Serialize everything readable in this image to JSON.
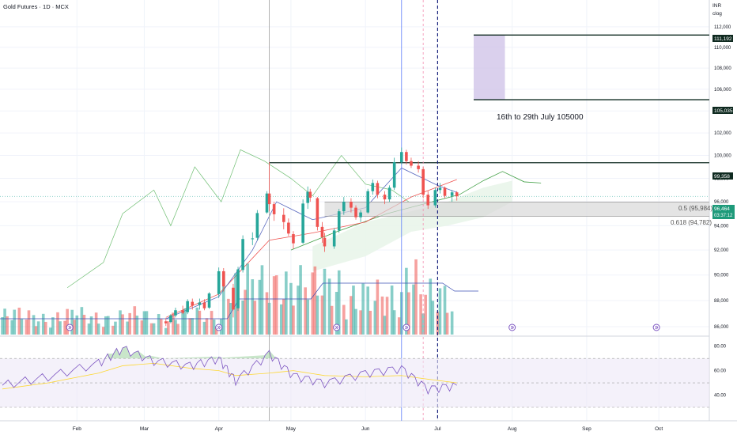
{
  "header": {
    "title": "Gold Futures · 1D · MCX"
  },
  "axis_labels": {
    "currency": "INR",
    "mode": "clog"
  },
  "price_tags": {
    "target_high": "111,192",
    "target_low": "105,035",
    "resistance": "99,358",
    "last_price": "96,464",
    "countdown": "03:37:12"
  },
  "annotations": {
    "target_box": "16th to 29th July 105000"
  },
  "fib_levels": [
    {
      "label": "0.5 (95,984)"
    },
    {
      "label": "0.618 (94,782)"
    }
  ],
  "colors": {
    "up": "#26a69a",
    "down": "#ef5350",
    "rsi": "#7e57c2",
    "target_box": "#d1c4e9",
    "fib_band": "#d9d9d9"
  },
  "chart_data": [
    {
      "type": "candlestick",
      "title": "Gold Futures · 1D · MCX",
      "ylabel": "INR",
      "y_scale": "log",
      "ylim": [
        85400,
        114200
      ],
      "y_ticks": [
        86000,
        88000,
        90000,
        92000,
        94000,
        96000,
        98000,
        100000,
        102000,
        104000,
        106000,
        108000,
        110000,
        112000
      ],
      "y_tick_labels": [
        "86,000",
        "88,000",
        "90,000",
        "92,000",
        "94,000",
        "96,000",
        "98,000",
        "100,000",
        "102,000",
        "104,000",
        "106,000",
        "108,000",
        "110,000",
        "112,000"
      ],
      "x_ticks": [
        {
          "date": "2025-02-01",
          "label": "Feb"
        },
        {
          "date": "2025-03-01",
          "label": "Mar"
        },
        {
          "date": "2025-04-01",
          "label": "Apr"
        },
        {
          "date": "2025-05-01",
          "label": "May"
        },
        {
          "date": "2025-06-01",
          "label": "Jun"
        },
        {
          "date": "2025-07-01",
          "label": "Jul"
        },
        {
          "date": "2025-08-01",
          "label": "Aug"
        },
        {
          "date": "2025-09-01",
          "label": "Sep"
        },
        {
          "date": "2025-10-01",
          "label": "Oct"
        }
      ],
      "xlim": [
        "2024-12-31",
        "2025-10-22"
      ],
      "candles": [
        [
          "2025-03-10",
          86400,
          86650,
          86050,
          86250
        ],
        [
          "2025-03-12",
          86350,
          86950,
          86250,
          86850
        ],
        [
          "2025-03-14",
          86850,
          87450,
          86700,
          87250
        ],
        [
          "2025-03-17",
          87250,
          87600,
          86950,
          87050
        ],
        [
          "2025-03-19",
          87100,
          88100,
          86950,
          87950
        ],
        [
          "2025-03-21",
          87900,
          88150,
          87300,
          87600
        ],
        [
          "2025-03-24",
          87650,
          88150,
          87300,
          87850
        ],
        [
          "2025-03-26",
          87850,
          88100,
          87250,
          87400
        ],
        [
          "2025-03-28",
          87450,
          88650,
          87350,
          88550
        ],
        [
          "2025-04-01",
          88500,
          90600,
          88200,
          90300
        ],
        [
          "2025-04-03",
          90300,
          90550,
          88700,
          89100
        ],
        [
          "2025-04-07",
          89000,
          89300,
          86700,
          87300
        ],
        [
          "2025-04-09",
          87400,
          90650,
          87200,
          90450
        ],
        [
          "2025-04-11",
          90400,
          93200,
          90200,
          92900
        ],
        [
          "2025-04-15",
          92900,
          93450,
          92400,
          92950
        ],
        [
          "2025-04-17",
          93000,
          95300,
          92800,
          95050
        ],
        [
          "2025-04-21",
          95100,
          96900,
          95000,
          96700
        ],
        [
          "2025-04-22",
          96700,
          99400,
          95200,
          95800
        ],
        [
          "2025-04-24",
          95800,
          96000,
          94400,
          94950
        ],
        [
          "2025-04-28",
          94900,
          95450,
          93700,
          94300
        ],
        [
          "2025-04-30",
          94250,
          94600,
          93150,
          93350
        ],
        [
          "2025-05-02",
          93300,
          93550,
          92100,
          92550
        ],
        [
          "2025-05-06",
          92600,
          96200,
          92500,
          95850
        ],
        [
          "2025-05-08",
          95900,
          97300,
          95400,
          96850
        ],
        [
          "2025-05-09",
          96850,
          97100,
          96000,
          96350
        ],
        [
          "2025-05-12",
          96300,
          96400,
          93600,
          93900
        ],
        [
          "2025-05-14",
          93900,
          94300,
          92600,
          93050
        ],
        [
          "2025-05-15",
          93000,
          93400,
          91850,
          92300
        ],
        [
          "2025-05-19",
          92300,
          93800,
          92100,
          93600
        ],
        [
          "2025-05-21",
          93600,
          95400,
          93400,
          95200
        ],
        [
          "2025-05-23",
          95200,
          96400,
          94900,
          96000
        ],
        [
          "2025-05-26",
          96000,
          96300,
          95100,
          95500
        ],
        [
          "2025-05-28",
          95500,
          95700,
          94500,
          94700
        ],
        [
          "2025-05-30",
          94700,
          95300,
          94300,
          95100
        ],
        [
          "2025-06-02",
          95100,
          97100,
          95000,
          96900
        ],
        [
          "2025-06-04",
          96900,
          97900,
          96600,
          97600
        ],
        [
          "2025-06-06",
          97600,
          97800,
          96300,
          96600
        ],
        [
          "2025-06-09",
          96600,
          96900,
          95800,
          96200
        ],
        [
          "2025-06-11",
          96200,
          97400,
          96000,
          97200
        ],
        [
          "2025-06-13",
          97200,
          99800,
          97000,
          99400
        ],
        [
          "2025-06-16",
          99400,
          100700,
          99200,
          100300
        ],
        [
          "2025-06-18",
          100300,
          100500,
          99200,
          99500
        ],
        [
          "2025-06-20",
          99500,
          99800,
          98900,
          99100
        ],
        [
          "2025-06-23",
          99100,
          99500,
          98500,
          98800
        ],
        [
          "2025-06-25",
          98800,
          99000,
          96300,
          96600
        ],
        [
          "2025-06-27",
          96600,
          96900,
          95400,
          95700
        ],
        [
          "2025-06-30",
          95700,
          97200,
          95500,
          97000
        ],
        [
          "2025-07-02",
          97000,
          97600,
          96700,
          97200
        ],
        [
          "2025-07-04",
          97200,
          97300,
          96300,
          96500
        ],
        [
          "2025-07-07",
          96500,
          97000,
          96000,
          96800
        ],
        [
          "2025-07-09",
          96800,
          96900,
          96100,
          96464
        ]
      ]
    },
    {
      "type": "line",
      "title": "RSI",
      "ylim": [
        30,
        85
      ],
      "y_ticks": [
        40,
        60,
        80
      ],
      "y_tick_labels": [
        "40.00",
        "60.00",
        "80.00"
      ],
      "bands": [
        30,
        50,
        70
      ],
      "x": [
        "2025-01-01",
        "2025-01-20",
        "2025-02-10",
        "2025-02-20",
        "2025-03-05",
        "2025-03-20",
        "2025-04-01",
        "2025-04-08",
        "2025-04-22",
        "2025-05-02",
        "2025-05-15",
        "2025-06-01",
        "2025-06-16",
        "2025-06-27",
        "2025-07-09"
      ],
      "series": [
        {
          "values": [
            48,
            55,
            66,
            78,
            68,
            64,
            70,
            52,
            74,
            56,
            50,
            58,
            62,
            45,
            48
          ]
        },
        {
          "values": [
            45,
            50,
            58,
            64,
            66,
            62,
            60,
            56,
            58,
            60,
            56,
            55,
            56,
            53,
            50
          ]
        }
      ]
    }
  ]
}
